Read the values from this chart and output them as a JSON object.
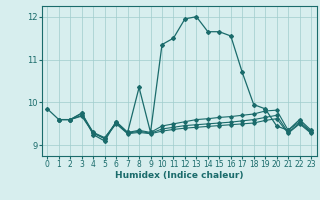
{
  "xlabel": "Humidex (Indice chaleur)",
  "background_color": "#d7eeee",
  "grid_color": "#a0cccc",
  "line_color": "#1a6b6b",
  "xlim": [
    -0.5,
    23.5
  ],
  "ylim": [
    8.75,
    12.25
  ],
  "yticks": [
    9,
    10,
    11,
    12
  ],
  "xticks": [
    0,
    1,
    2,
    3,
    4,
    5,
    6,
    7,
    8,
    9,
    10,
    11,
    12,
    13,
    14,
    15,
    16,
    17,
    18,
    19,
    20,
    21,
    22,
    23
  ],
  "line1_x": [
    0,
    1,
    2,
    3,
    4,
    5,
    6,
    7,
    8,
    9,
    10,
    11,
    12,
    13,
    14,
    15,
    16,
    17,
    18,
    19,
    20,
    21,
    22,
    23
  ],
  "line1_y": [
    9.85,
    9.6,
    9.6,
    9.75,
    9.25,
    9.1,
    9.55,
    9.3,
    10.35,
    9.3,
    11.35,
    11.5,
    11.95,
    12.0,
    11.65,
    11.65,
    11.55,
    10.7,
    9.95,
    9.85,
    9.45,
    9.35,
    9.6,
    9.35
  ],
  "line2_x": [
    1,
    2,
    3,
    4,
    5,
    6,
    7,
    8,
    9,
    10,
    11,
    12,
    13,
    14,
    15,
    16,
    17,
    18,
    19,
    20,
    21,
    22,
    23
  ],
  "line2_y": [
    9.6,
    9.6,
    9.75,
    9.3,
    9.15,
    9.55,
    9.3,
    9.35,
    9.3,
    9.45,
    9.5,
    9.55,
    9.6,
    9.62,
    9.65,
    9.67,
    9.7,
    9.73,
    9.8,
    9.82,
    9.35,
    9.55,
    9.32
  ],
  "line3_x": [
    1,
    2,
    3,
    4,
    5,
    6,
    7,
    8,
    9,
    10,
    11,
    12,
    13,
    14,
    15,
    16,
    17,
    18,
    19,
    20,
    21,
    22,
    23
  ],
  "line3_y": [
    9.6,
    9.6,
    9.7,
    9.3,
    9.18,
    9.52,
    9.28,
    9.33,
    9.28,
    9.38,
    9.42,
    9.46,
    9.48,
    9.5,
    9.52,
    9.54,
    9.57,
    9.6,
    9.65,
    9.7,
    9.3,
    9.52,
    9.3
  ],
  "line4_x": [
    1,
    2,
    3,
    4,
    5,
    6,
    7,
    8,
    9,
    10,
    11,
    12,
    13,
    14,
    15,
    16,
    17,
    18,
    19,
    20,
    21,
    22,
    23
  ],
  "line4_y": [
    9.6,
    9.6,
    9.68,
    9.28,
    9.16,
    9.5,
    9.27,
    9.3,
    9.27,
    9.33,
    9.37,
    9.4,
    9.42,
    9.44,
    9.46,
    9.48,
    9.5,
    9.52,
    9.58,
    9.62,
    9.28,
    9.5,
    9.28
  ]
}
